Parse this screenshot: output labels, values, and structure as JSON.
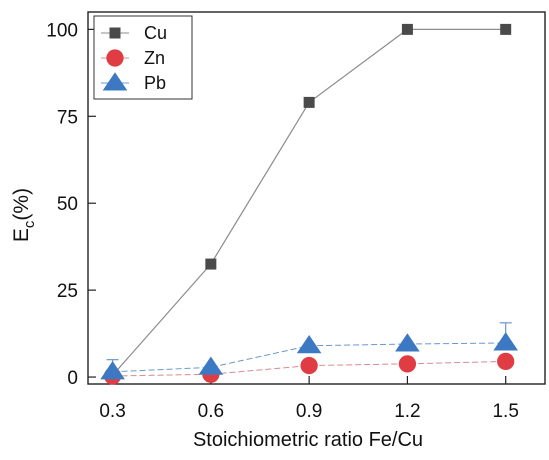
{
  "chart_data": {
    "type": "line",
    "xlabel": "Stoichiometric ratio Fe/Cu",
    "ylabel": {
      "main": "E",
      "subscript": "c",
      "suffix": "(%)"
    },
    "xlim": [
      0.225,
      1.62
    ],
    "ylim": [
      -2,
      105
    ],
    "x_ticks": [
      0.3,
      0.6,
      0.9,
      1.2,
      1.5
    ],
    "x_tick_labels": [
      "0.3",
      "0.6",
      "0.9",
      "1.2",
      "1.5"
    ],
    "y_ticks": [
      0,
      25,
      50,
      75,
      100
    ],
    "y_tick_labels": [
      "0",
      "25",
      "50",
      "75",
      "100"
    ],
    "grid": false,
    "legend_placement": "top-left",
    "series": [
      {
        "name": "Cu",
        "marker": "square",
        "color": "#4a4a4a",
        "line_color": "#8c8c8c",
        "x": [
          0.3,
          0.6,
          0.9,
          1.2,
          1.5
        ],
        "y": [
          0.5,
          32.5,
          79,
          100,
          100
        ],
        "error": [
          0,
          0,
          0,
          0,
          0
        ]
      },
      {
        "name": "Zn",
        "marker": "circle",
        "color": "#e03c44",
        "line_color": "#d88b8f",
        "x": [
          0.3,
          0.6,
          0.9,
          1.2,
          1.5
        ],
        "y": [
          0.3,
          0.8,
          3.3,
          3.8,
          4.5
        ],
        "error": [
          0,
          0,
          0,
          0,
          0
        ]
      },
      {
        "name": "Pb",
        "marker": "triangle",
        "color": "#3d78c2",
        "line_color": "#6b97cf",
        "x": [
          0.3,
          0.6,
          0.9,
          1.2,
          1.5
        ],
        "y": [
          1.5,
          2.8,
          9,
          9.5,
          9.8
        ],
        "error": [
          3.5,
          0,
          0,
          0,
          5.8
        ]
      }
    ]
  }
}
